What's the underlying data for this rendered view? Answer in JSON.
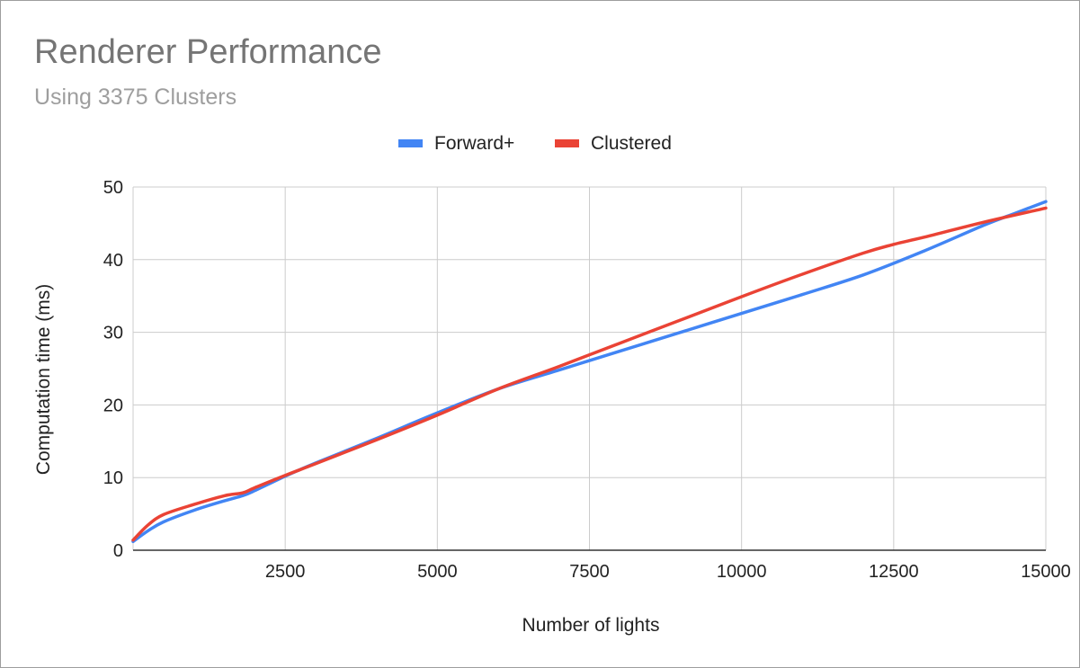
{
  "chart_data": {
    "type": "line",
    "title": "Renderer Performance",
    "subtitle": "Using 3375 Clusters",
    "xlabel": "Number of lights",
    "ylabel": "Computation time (ms)",
    "xlim": [
      0,
      15000
    ],
    "ylim": [
      0,
      50
    ],
    "x_ticks": [
      "2500",
      "5000",
      "7500",
      "10000",
      "12500",
      "15000"
    ],
    "y_ticks": [
      "0",
      "10",
      "20",
      "30",
      "40",
      "50"
    ],
    "grid": true,
    "legend_position": "top",
    "series": [
      {
        "name": "Forward+",
        "color": "#4285f4",
        "x": [
          0,
          250,
          500,
          1000,
          1500,
          1800,
          2000,
          2500,
          3000,
          4000,
          5000,
          6000,
          7000,
          8000,
          9000,
          10000,
          11000,
          12000,
          13000,
          14000,
          14500,
          15000
        ],
        "y": [
          1.2,
          2.7,
          3.9,
          5.5,
          6.8,
          7.5,
          8.2,
          10.2,
          12.0,
          15.4,
          18.9,
          22.2,
          24.8,
          27.4,
          30.0,
          32.6,
          35.2,
          37.9,
          41.2,
          44.8,
          46.4,
          48.0
        ]
      },
      {
        "name": "Clustered",
        "color": "#ea4335",
        "x": [
          0,
          250,
          500,
          1000,
          1500,
          1800,
          2000,
          2500,
          3000,
          4000,
          5000,
          6000,
          7000,
          8000,
          9000,
          10000,
          11000,
          12000,
          12500,
          13000,
          14000,
          15000
        ],
        "y": [
          1.4,
          3.5,
          4.9,
          6.3,
          7.5,
          7.9,
          8.6,
          10.3,
          11.9,
          15.2,
          18.6,
          22.2,
          25.3,
          28.5,
          31.7,
          34.9,
          38.0,
          40.9,
          42.1,
          43.1,
          45.2,
          47.1
        ]
      }
    ]
  }
}
